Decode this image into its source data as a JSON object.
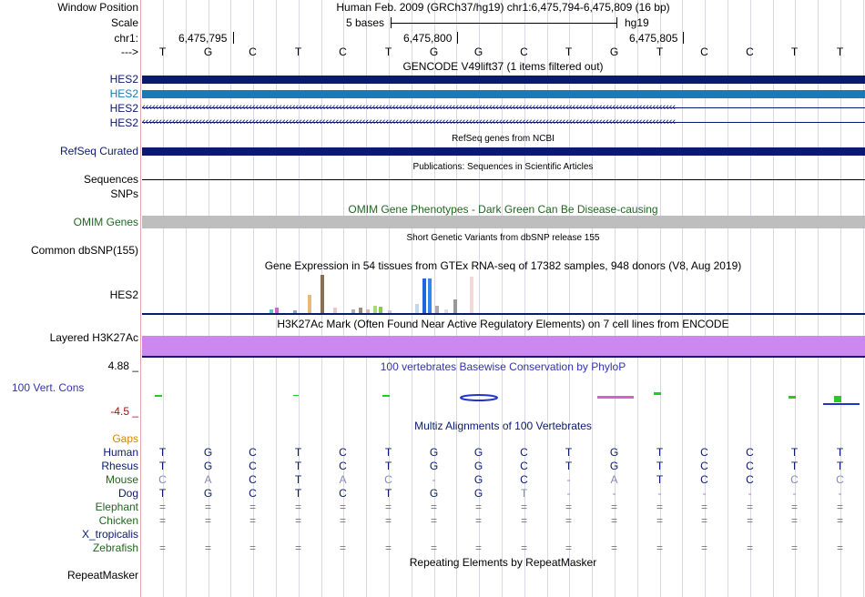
{
  "header": {
    "window_position_label": "Window Position",
    "window_position_text": "Human Feb. 2009 (GRCh37/hg19)   chr1:6,475,794-6,475,809 (16 bp)",
    "scale_label": "Scale",
    "scale_text": "5 bases",
    "scale_assembly": "hg19",
    "chrom_label": "chr1:",
    "ticks": [
      "6,475,795",
      "6,475,800",
      "6,475,805"
    ],
    "strand_label": "--->"
  },
  "sequence": [
    "T",
    "G",
    "C",
    "T",
    "C",
    "T",
    "G",
    "G",
    "C",
    "T",
    "G",
    "T",
    "C",
    "C",
    "T",
    "T"
  ],
  "tracks": {
    "gencode_title": "GENCODE V49lift37 (1 items filtered out)",
    "gencode_items": [
      "HES2",
      "HES2",
      "HES2",
      "HES2"
    ],
    "refseq_title": "RefSeq genes from NCBI",
    "refseq_label": "RefSeq Curated",
    "pubs_title": "Publications: Sequences in Scientific Articles",
    "sequences_label": "Sequences",
    "snps_label": "SNPs",
    "omim_title": "OMIM Gene Phenotypes - Dark Green Can Be Disease-causing",
    "omim_label": "OMIM Genes",
    "dbsnp_title": "Short Genetic Variants from dbSNP release 155",
    "dbsnp_label": "Common dbSNP(155)",
    "gtex_title": "Gene Expression in 54 tissues from GTEx RNA-seq of 17382 samples, 948 donors (V8, Aug 2019)",
    "gtex_label": "HES2",
    "h3k27_title": "H3K27Ac Mark (Often Found Near Active Regulatory Elements) on 7 cell lines from ENCODE",
    "h3k27_label": "Layered H3K27Ac",
    "phylop_max": "4.88 _",
    "phylop_title": "100 vertebrates Basewise Conservation by PhyloP",
    "cons_label": "100 Vert. Cons",
    "phylop_min": "-4.5 _",
    "multiz_title": "Multiz Alignments of 100 Vertebrates",
    "gaps_label": "Gaps",
    "repeat_title": "Repeating Elements by RepeatMasker",
    "repeat_label": "RepeatMasker"
  },
  "alignment": [
    {
      "species": "Human",
      "bases": [
        "T",
        "G",
        "C",
        "T",
        "C",
        "T",
        "G",
        "G",
        "C",
        "T",
        "G",
        "T",
        "C",
        "C",
        "T",
        "T"
      ]
    },
    {
      "species": "Rhesus",
      "bases": [
        "T",
        "G",
        "C",
        "T",
        "C",
        "T",
        "G",
        "G",
        "C",
        "T",
        "G",
        "T",
        "C",
        "C",
        "T",
        "T"
      ]
    },
    {
      "species": "Mouse",
      "bases": [
        "C",
        "A",
        "C",
        "T",
        "A",
        "C",
        "-",
        "G",
        "C",
        "-",
        "A",
        "T",
        "C",
        "C",
        "C",
        "C"
      ]
    },
    {
      "species": "Dog",
      "bases": [
        "T",
        "G",
        "C",
        "T",
        "C",
        "T",
        "G",
        "G",
        "T",
        "-",
        "-",
        "-",
        "-",
        "-",
        "-",
        "-"
      ]
    },
    {
      "species": "Elephant",
      "bases": [
        "=",
        "=",
        "=",
        "=",
        "=",
        "=",
        "=",
        "=",
        "=",
        "=",
        "=",
        "=",
        "=",
        "=",
        "=",
        "="
      ]
    },
    {
      "species": "Chicken",
      "bases": [
        "=",
        "=",
        "=",
        "=",
        "=",
        "=",
        "=",
        "=",
        "=",
        "=",
        "=",
        "=",
        "=",
        "=",
        "=",
        "="
      ]
    },
    {
      "species": "X_tropicalis",
      "bases": [
        "",
        "",
        "",
        "",
        "",
        "",
        "",
        "",
        "",
        "",
        "",
        "",
        "",
        "",
        "",
        ""
      ]
    },
    {
      "species": "Zebrafish",
      "bases": [
        "=",
        "=",
        "=",
        "=",
        "=",
        "=",
        "=",
        "=",
        "=",
        "=",
        "=",
        "=",
        "=",
        "=",
        "=",
        "="
      ]
    }
  ],
  "colors": {
    "navy": "#0a1a6e",
    "gencode_light": "#1a7ab8",
    "omim": "#bebebe",
    "h3k27": "#cc88ee",
    "phylop_title": "#3333aa",
    "omim_green": "#226622",
    "gaps_orange": "#cc8800",
    "cons_red": "#991111"
  }
}
